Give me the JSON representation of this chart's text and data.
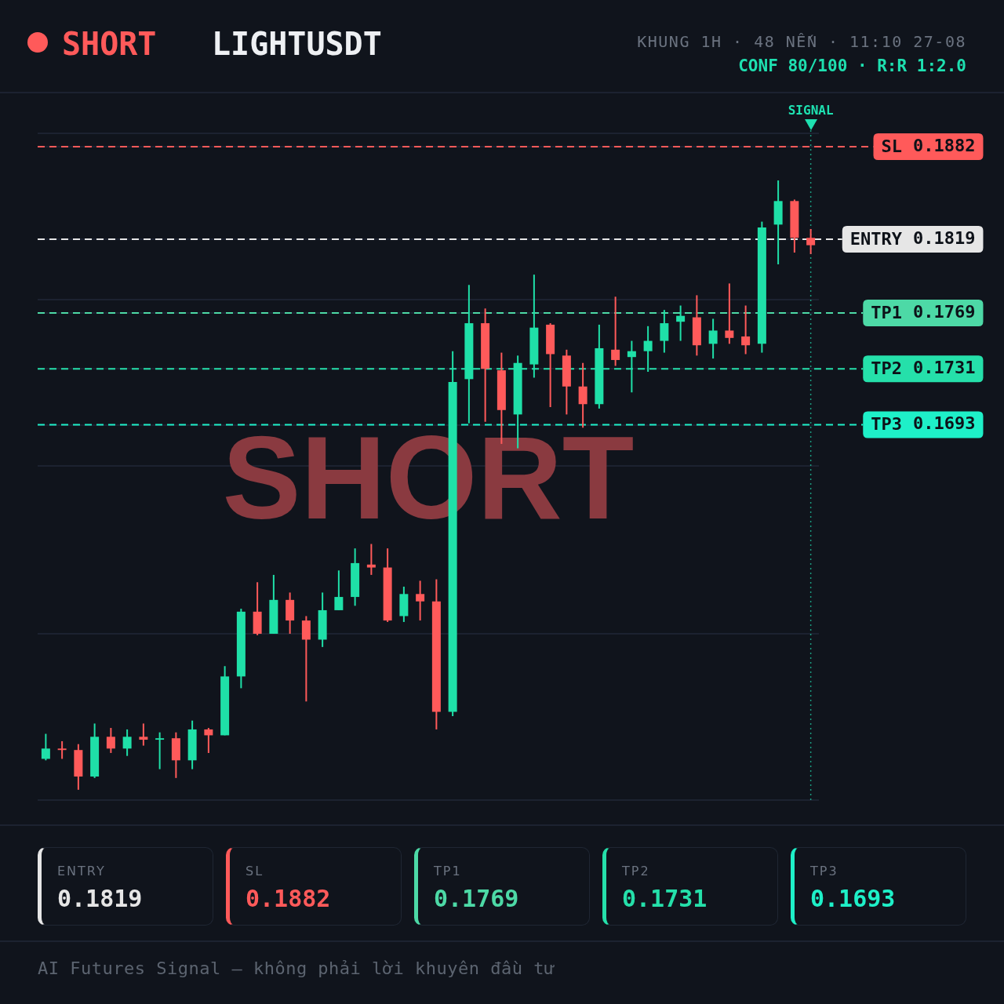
{
  "chart_data": [
    {
      "type": "candlestick",
      "title": "LIGHTUSDT",
      "subtitle": "KHUNG 1H · 48 NẾN · 11:10 27-08",
      "categories": [
        null,
        null,
        null,
        null,
        null,
        null,
        null,
        null,
        null,
        null,
        null,
        null,
        null,
        null,
        null,
        null,
        null,
        null,
        null,
        null,
        null,
        null,
        null,
        null,
        null,
        null,
        null,
        null,
        null,
        null,
        null,
        null,
        null,
        null,
        null,
        null,
        null,
        null,
        null,
        null,
        null,
        null,
        null,
        null,
        null,
        null,
        null,
        null
      ],
      "ohlc": [
        [
          0.1466,
          0.1483,
          0.1465,
          0.1473
        ],
        [
          0.1473,
          0.1478,
          0.1466,
          0.1472
        ],
        [
          0.1472,
          0.1476,
          0.1445,
          0.1454
        ],
        [
          0.1454,
          0.149,
          0.1453,
          0.1481
        ],
        [
          0.1481,
          0.1487,
          0.147,
          0.1473
        ],
        [
          0.1473,
          0.1486,
          0.1468,
          0.1481
        ],
        [
          0.1481,
          0.149,
          0.1475,
          0.1479
        ],
        [
          0.1479,
          0.1484,
          0.1459,
          0.148
        ],
        [
          0.148,
          0.1484,
          0.1453,
          0.1465
        ],
        [
          0.1465,
          0.1492,
          0.1459,
          0.1486
        ],
        [
          0.1486,
          0.1487,
          0.147,
          0.1482
        ],
        [
          0.1482,
          0.1529,
          0.1482,
          0.1522
        ],
        [
          0.1522,
          0.1568,
          0.1514,
          0.1566
        ],
        [
          0.1566,
          0.1586,
          0.155,
          0.1551
        ],
        [
          0.1551,
          0.1591,
          0.1551,
          0.1574
        ],
        [
          0.1574,
          0.1579,
          0.1551,
          0.156
        ],
        [
          0.156,
          0.1563,
          0.1505,
          0.1547
        ],
        [
          0.1547,
          0.1579,
          0.1542,
          0.1567
        ],
        [
          0.1567,
          0.1594,
          0.1567,
          0.1576
        ],
        [
          0.1576,
          0.1609,
          0.157,
          0.1599
        ],
        [
          0.1598,
          0.1612,
          0.1591,
          0.1596
        ],
        [
          0.1596,
          0.1609,
          0.1559,
          0.156
        ],
        [
          0.1563,
          0.1583,
          0.1559,
          0.1578
        ],
        [
          0.1578,
          0.1587,
          0.156,
          0.1573
        ],
        [
          0.1573,
          0.1588,
          0.1486,
          0.1498
        ],
        [
          0.1498,
          0.1743,
          0.1495,
          0.1722
        ],
        [
          0.1724,
          0.1788,
          0.1694,
          0.1762
        ],
        [
          0.1762,
          0.1772,
          0.1695,
          0.1731
        ],
        [
          0.173,
          0.1742,
          0.168,
          0.1703
        ],
        [
          0.17,
          0.174,
          0.1677,
          0.1735
        ],
        [
          0.1734,
          0.1795,
          0.1725,
          0.1759
        ],
        [
          0.1761,
          0.1762,
          0.1705,
          0.1741
        ],
        [
          0.174,
          0.1744,
          0.17,
          0.1719
        ],
        [
          0.1719,
          0.1735,
          0.1691,
          0.1707
        ],
        [
          0.1707,
          0.1761,
          0.1704,
          0.1745
        ],
        [
          0.1744,
          0.178,
          0.1733,
          0.1737
        ],
        [
          0.1739,
          0.175,
          0.1715,
          0.1743
        ],
        [
          0.1743,
          0.176,
          0.1729,
          0.175
        ],
        [
          0.175,
          0.1771,
          0.1742,
          0.1762
        ],
        [
          0.1763,
          0.1774,
          0.175,
          0.1767
        ],
        [
          0.1766,
          0.1781,
          0.174,
          0.1747
        ],
        [
          0.1748,
          0.1765,
          0.1738,
          0.1757
        ],
        [
          0.1757,
          0.1789,
          0.1748,
          0.1752
        ],
        [
          0.1753,
          0.1774,
          0.1741,
          0.1747
        ],
        [
          0.1748,
          0.1831,
          0.1742,
          0.1827
        ],
        [
          0.1829,
          0.1859,
          0.1802,
          0.1845
        ],
        [
          0.1845,
          0.1846,
          0.181,
          0.182
        ],
        [
          0.182,
          0.1826,
          0.1809,
          0.1815
        ]
      ],
      "colors": [
        "#1fe0a8",
        "#ff5a5a",
        "#ff5a5a",
        "#1fe0a8",
        "#ff5a5a",
        "#1fe0a8",
        "#ff5a5a",
        "#1fe0a8",
        "#ff5a5a",
        "#1fe0a8",
        "#ff5a5a",
        "#1fe0a8",
        "#1fe0a8",
        "#ff5a5a",
        "#1fe0a8",
        "#ff5a5a",
        "#ff5a5a",
        "#1fe0a8",
        "#1fe0a8",
        "#1fe0a8",
        "#ff5a5a",
        "#ff5a5a",
        "#1fe0a8",
        "#ff5a5a",
        "#ff5a5a",
        "#1fe0a8",
        "#1fe0a8",
        "#ff5a5a",
        "#ff5a5a",
        "#1fe0a8",
        "#1fe0a8",
        "#ff5a5a",
        "#ff5a5a",
        "#ff5a5a",
        "#1fe0a8",
        "#ff5a5a",
        "#1fe0a8",
        "#1fe0a8",
        "#1fe0a8",
        "#1fe0a8",
        "#ff5a5a",
        "#1fe0a8",
        "#ff5a5a",
        "#ff5a5a",
        "#1fe0a8",
        "#1fe0a8",
        "#ff5a5a",
        "#ff5a5a"
      ],
      "ylim": [
        0.1438,
        0.1891
      ],
      "yticks": [
        {
          "value": 0.1438,
          "label": null
        },
        {
          "value": 0.1551,
          "label": null
        },
        {
          "value": 0.1665,
          "label": null
        },
        0.1693,
        0.1731,
        0.1769,
        {
          "value": 0.1778,
          "label": null
        },
        0.1819,
        0.1882,
        {
          "value": 0.1891,
          "label": null
        }
      ],
      "tick_labels": "y",
      "grid": "y",
      "legend": false,
      "ref_lines": [
        {
          "axis": "y",
          "value": 0.1819,
          "label": "ENTRY",
          "color": "#e6e6e6",
          "line_style": "dashed"
        },
        {
          "axis": "y",
          "value": 0.1882,
          "label": "SL",
          "color": "#ff5a5a",
          "line_style": "dashed"
        },
        {
          "axis": "y",
          "value": 0.1769,
          "label": "TP1",
          "color": "#4dd9a6",
          "line_style": "dashed"
        },
        {
          "axis": "y",
          "value": 0.1731,
          "label": "TP2",
          "color": "#25e0aa",
          "line_style": "dashed"
        },
        {
          "axis": "y",
          "value": 0.1693,
          "label": "TP3",
          "color": "#1ef0c8",
          "line_style": "dashed"
        }
      ],
      "annotations": [
        "SHORT",
        "CONF 80/100 · R:R 1:2.0",
        "SIGNAL",
        "SHORT",
        "AI Futures Signal — không phải lời khuyên đầu tư"
      ]
    },
    {
      "type": "other",
      "categories": [
        "ENTRY",
        "SL",
        "TP1",
        "TP2",
        "TP3"
      ],
      "values": [
        0.1819,
        0.1882,
        0.1769,
        0.1731,
        0.1693
      ],
      "data_labels": true,
      "colors": [
        "#e6e6e6",
        "#ff5a5a",
        "#4dd9a6",
        "#25e0aa",
        "#1ef0c8"
      ]
    }
  ]
}
